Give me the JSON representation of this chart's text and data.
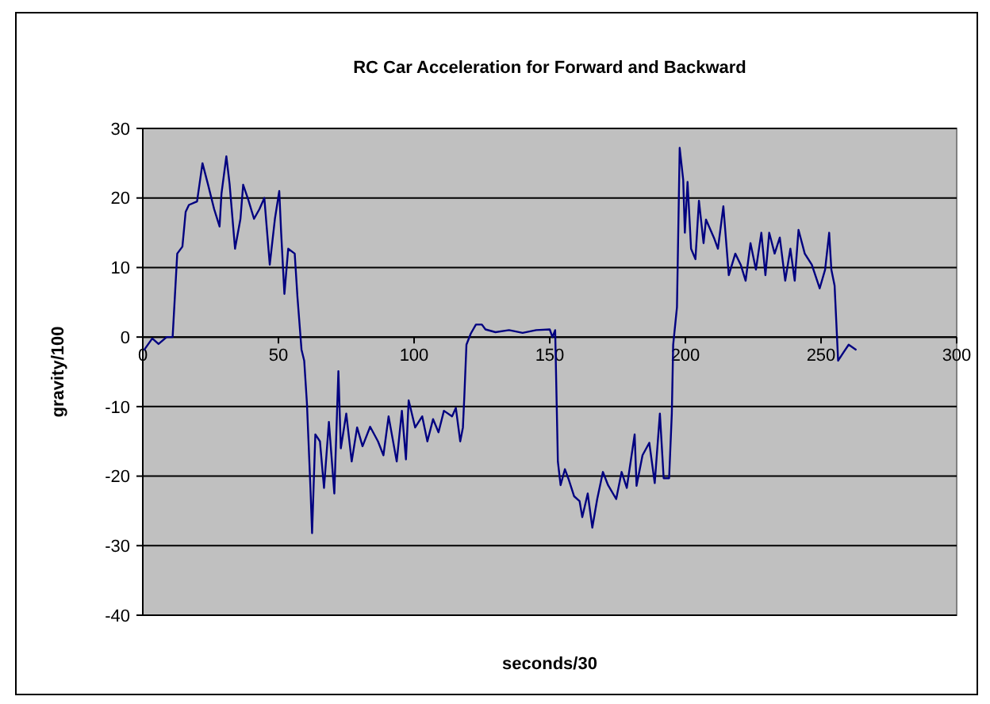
{
  "chart_data": {
    "type": "line",
    "title": "RC Car Acceleration for Forward and Backward",
    "xlabel": "seconds/30",
    "ylabel": "gravity/100",
    "xlim": [
      0,
      300
    ],
    "ylim": [
      -40,
      30
    ],
    "xticks": [
      0,
      50,
      100,
      150,
      200,
      250,
      300
    ],
    "yticks": [
      -40,
      -30,
      -20,
      -10,
      0,
      10,
      20,
      30
    ],
    "grid": "y",
    "marker": "none",
    "line_style": "solid",
    "series": [
      {
        "color": "#000080",
        "x": [
          0.6,
          3.5,
          5.8,
          8.8,
          11,
          12.7,
          14.6,
          15.8,
          17,
          20,
          22,
          24,
          26.3,
          28.3,
          29,
          30.8,
          32,
          34,
          36,
          37,
          39,
          41,
          43,
          44.8,
          46.8,
          48.7,
          50.3,
          51,
          52.2,
          53.6,
          56,
          57,
          58.5,
          59.5,
          60.5,
          61.8,
          62.4,
          63.6,
          65.3,
          66.8,
          68.6,
          70.6,
          72.1,
          73,
          75,
          77,
          79,
          81,
          83.8,
          86.7,
          88.7,
          90.6,
          93.6,
          95.5,
          97,
          98,
          100.4,
          103,
          104.9,
          107,
          109,
          111,
          114,
          115.4,
          117,
          118,
          118.5,
          119.3,
          120.9,
          122.8,
          125,
          126.3,
          130,
          135,
          140,
          145,
          150,
          151,
          152,
          153,
          154,
          155.6,
          157,
          159,
          161,
          162,
          164,
          165.7,
          167.5,
          169.6,
          171.5,
          174.5,
          176.5,
          178.4,
          181.3,
          182,
          184.2,
          186.7,
          188.7,
          190.6,
          192,
          194,
          195,
          195.5,
          196.9,
          197.9,
          199.2,
          199.8,
          200.8,
          202.1,
          203.7,
          205,
          206.7,
          207.6,
          210.5,
          212,
          214,
          216,
          218.4,
          220.4,
          222.2,
          224,
          226,
          228,
          229.5,
          230.9,
          232.9,
          234.8,
          236.8,
          238.7,
          240.3,
          241.7,
          244,
          246.6,
          249.5,
          251.5,
          253,
          253.8,
          255,
          256.3,
          258.3,
          260.2,
          262.8
        ],
        "values": [
          -1.8,
          -0.2,
          -1,
          0,
          0,
          12,
          13,
          18,
          19,
          19.5,
          25,
          22,
          18.4,
          15.9,
          20.6,
          26,
          22,
          12.7,
          17,
          21.9,
          19.6,
          17,
          18.4,
          20,
          10.4,
          17,
          21,
          15,
          6.2,
          12.7,
          12,
          5.8,
          -1.8,
          -3.4,
          -9.5,
          -21.7,
          -28.2,
          -14,
          -15,
          -21.7,
          -12.2,
          -22.5,
          -4.9,
          -16,
          -11,
          -17.9,
          -13,
          -15.7,
          -12.9,
          -15,
          -17,
          -11.4,
          -17.9,
          -10.6,
          -17.6,
          -9.1,
          -13,
          -11.4,
          -15,
          -11.8,
          -13.7,
          -10.6,
          -11.4,
          -10.2,
          -15,
          -13,
          -8.7,
          -1.1,
          0.5,
          1.8,
          1.8,
          1.1,
          0.7,
          1,
          0.6,
          1,
          1.1,
          0,
          1,
          -17.9,
          -21.3,
          -19,
          -20.5,
          -22.9,
          -23.6,
          -25.9,
          -22.5,
          -27.4,
          -23.3,
          -19.4,
          -21.3,
          -23.3,
          -19.4,
          -21.7,
          -14,
          -21.4,
          -17,
          -15.2,
          -21,
          -11,
          -20.3,
          -20.3,
          -11,
          -1.1,
          4.3,
          27.2,
          22.6,
          15,
          22.3,
          12.7,
          11.2,
          19.6,
          13.5,
          16.9,
          14.3,
          12.7,
          18.8,
          8.9,
          12,
          10.4,
          8.1,
          13.5,
          9.7,
          15,
          8.9,
          15,
          12,
          14.3,
          8.1,
          12.7,
          8.1,
          15.4,
          12,
          10.4,
          7,
          9.7,
          15,
          9.7,
          7.4,
          -3.4,
          -2.2,
          -1.1,
          -1.8
        ]
      }
    ]
  }
}
